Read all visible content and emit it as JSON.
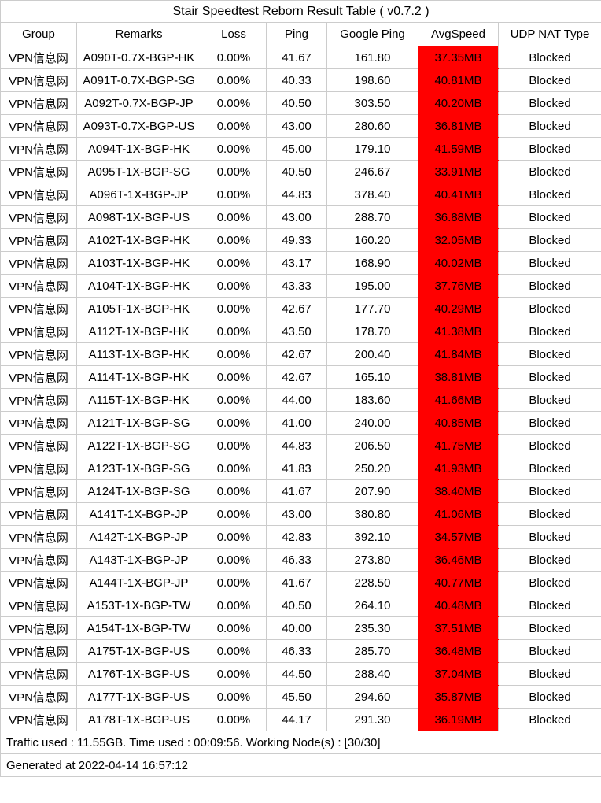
{
  "title": "Stair Speedtest Reborn Result Table ( v0.7.2 )",
  "columns": [
    "Group",
    "Remarks",
    "Loss",
    "Ping",
    "Google Ping",
    "AvgSpeed",
    "UDP NAT Type"
  ],
  "rows": [
    {
      "group": "VPN信息网",
      "remarks": "A090T-0.7X-BGP-HK",
      "loss": "0.00%",
      "ping": "41.67",
      "google_ping": "161.80",
      "avg_speed": "37.35MB",
      "udp_nat_type": "Blocked"
    },
    {
      "group": "VPN信息网",
      "remarks": "A091T-0.7X-BGP-SG",
      "loss": "0.00%",
      "ping": "40.33",
      "google_ping": "198.60",
      "avg_speed": "40.81MB",
      "udp_nat_type": "Blocked"
    },
    {
      "group": "VPN信息网",
      "remarks": "A092T-0.7X-BGP-JP",
      "loss": "0.00%",
      "ping": "40.50",
      "google_ping": "303.50",
      "avg_speed": "40.20MB",
      "udp_nat_type": "Blocked"
    },
    {
      "group": "VPN信息网",
      "remarks": "A093T-0.7X-BGP-US",
      "loss": "0.00%",
      "ping": "43.00",
      "google_ping": "280.60",
      "avg_speed": "36.81MB",
      "udp_nat_type": "Blocked"
    },
    {
      "group": "VPN信息网",
      "remarks": "A094T-1X-BGP-HK",
      "loss": "0.00%",
      "ping": "45.00",
      "google_ping": "179.10",
      "avg_speed": "41.59MB",
      "udp_nat_type": "Blocked"
    },
    {
      "group": "VPN信息网",
      "remarks": "A095T-1X-BGP-SG",
      "loss": "0.00%",
      "ping": "40.50",
      "google_ping": "246.67",
      "avg_speed": "33.91MB",
      "udp_nat_type": "Blocked"
    },
    {
      "group": "VPN信息网",
      "remarks": "A096T-1X-BGP-JP",
      "loss": "0.00%",
      "ping": "44.83",
      "google_ping": "378.40",
      "avg_speed": "40.41MB",
      "udp_nat_type": "Blocked"
    },
    {
      "group": "VPN信息网",
      "remarks": "A098T-1X-BGP-US",
      "loss": "0.00%",
      "ping": "43.00",
      "google_ping": "288.70",
      "avg_speed": "36.88MB",
      "udp_nat_type": "Blocked"
    },
    {
      "group": "VPN信息网",
      "remarks": "A102T-1X-BGP-HK",
      "loss": "0.00%",
      "ping": "49.33",
      "google_ping": "160.20",
      "avg_speed": "32.05MB",
      "udp_nat_type": "Blocked"
    },
    {
      "group": "VPN信息网",
      "remarks": "A103T-1X-BGP-HK",
      "loss": "0.00%",
      "ping": "43.17",
      "google_ping": "168.90",
      "avg_speed": "40.02MB",
      "udp_nat_type": "Blocked"
    },
    {
      "group": "VPN信息网",
      "remarks": "A104T-1X-BGP-HK",
      "loss": "0.00%",
      "ping": "43.33",
      "google_ping": "195.00",
      "avg_speed": "37.76MB",
      "udp_nat_type": "Blocked"
    },
    {
      "group": "VPN信息网",
      "remarks": "A105T-1X-BGP-HK",
      "loss": "0.00%",
      "ping": "42.67",
      "google_ping": "177.70",
      "avg_speed": "40.29MB",
      "udp_nat_type": "Blocked"
    },
    {
      "group": "VPN信息网",
      "remarks": "A112T-1X-BGP-HK",
      "loss": "0.00%",
      "ping": "43.50",
      "google_ping": "178.70",
      "avg_speed": "41.38MB",
      "udp_nat_type": "Blocked"
    },
    {
      "group": "VPN信息网",
      "remarks": "A113T-1X-BGP-HK",
      "loss": "0.00%",
      "ping": "42.67",
      "google_ping": "200.40",
      "avg_speed": "41.84MB",
      "udp_nat_type": "Blocked"
    },
    {
      "group": "VPN信息网",
      "remarks": "A114T-1X-BGP-HK",
      "loss": "0.00%",
      "ping": "42.67",
      "google_ping": "165.10",
      "avg_speed": "38.81MB",
      "udp_nat_type": "Blocked"
    },
    {
      "group": "VPN信息网",
      "remarks": "A115T-1X-BGP-HK",
      "loss": "0.00%",
      "ping": "44.00",
      "google_ping": "183.60",
      "avg_speed": "41.66MB",
      "udp_nat_type": "Blocked"
    },
    {
      "group": "VPN信息网",
      "remarks": "A121T-1X-BGP-SG",
      "loss": "0.00%",
      "ping": "41.00",
      "google_ping": "240.00",
      "avg_speed": "40.85MB",
      "udp_nat_type": "Blocked"
    },
    {
      "group": "VPN信息网",
      "remarks": "A122T-1X-BGP-SG",
      "loss": "0.00%",
      "ping": "44.83",
      "google_ping": "206.50",
      "avg_speed": "41.75MB",
      "udp_nat_type": "Blocked"
    },
    {
      "group": "VPN信息网",
      "remarks": "A123T-1X-BGP-SG",
      "loss": "0.00%",
      "ping": "41.83",
      "google_ping": "250.20",
      "avg_speed": "41.93MB",
      "udp_nat_type": "Blocked"
    },
    {
      "group": "VPN信息网",
      "remarks": "A124T-1X-BGP-SG",
      "loss": "0.00%",
      "ping": "41.67",
      "google_ping": "207.90",
      "avg_speed": "38.40MB",
      "udp_nat_type": "Blocked"
    },
    {
      "group": "VPN信息网",
      "remarks": "A141T-1X-BGP-JP",
      "loss": "0.00%",
      "ping": "43.00",
      "google_ping": "380.80",
      "avg_speed": "41.06MB",
      "udp_nat_type": "Blocked"
    },
    {
      "group": "VPN信息网",
      "remarks": "A142T-1X-BGP-JP",
      "loss": "0.00%",
      "ping": "42.83",
      "google_ping": "392.10",
      "avg_speed": "34.57MB",
      "udp_nat_type": "Blocked"
    },
    {
      "group": "VPN信息网",
      "remarks": "A143T-1X-BGP-JP",
      "loss": "0.00%",
      "ping": "46.33",
      "google_ping": "273.80",
      "avg_speed": "36.46MB",
      "udp_nat_type": "Blocked"
    },
    {
      "group": "VPN信息网",
      "remarks": "A144T-1X-BGP-JP",
      "loss": "0.00%",
      "ping": "41.67",
      "google_ping": "228.50",
      "avg_speed": "40.77MB",
      "udp_nat_type": "Blocked"
    },
    {
      "group": "VPN信息网",
      "remarks": "A153T-1X-BGP-TW",
      "loss": "0.00%",
      "ping": "40.50",
      "google_ping": "264.10",
      "avg_speed": "40.48MB",
      "udp_nat_type": "Blocked"
    },
    {
      "group": "VPN信息网",
      "remarks": "A154T-1X-BGP-TW",
      "loss": "0.00%",
      "ping": "40.00",
      "google_ping": "235.30",
      "avg_speed": "37.51MB",
      "udp_nat_type": "Blocked"
    },
    {
      "group": "VPN信息网",
      "remarks": "A175T-1X-BGP-US",
      "loss": "0.00%",
      "ping": "46.33",
      "google_ping": "285.70",
      "avg_speed": "36.48MB",
      "udp_nat_type": "Blocked"
    },
    {
      "group": "VPN信息网",
      "remarks": "A176T-1X-BGP-US",
      "loss": "0.00%",
      "ping": "44.50",
      "google_ping": "288.40",
      "avg_speed": "37.04MB",
      "udp_nat_type": "Blocked"
    },
    {
      "group": "VPN信息网",
      "remarks": "A177T-1X-BGP-US",
      "loss": "0.00%",
      "ping": "45.50",
      "google_ping": "294.60",
      "avg_speed": "35.87MB",
      "udp_nat_type": "Blocked"
    },
    {
      "group": "VPN信息网",
      "remarks": "A178T-1X-BGP-US",
      "loss": "0.00%",
      "ping": "44.17",
      "google_ping": "291.30",
      "avg_speed": "36.19MB",
      "udp_nat_type": "Blocked"
    }
  ],
  "footer": {
    "summary": "Traffic used : 11.55GB. Time used : 00:09:56. Working Node(s) : [30/30]",
    "generated": "Generated at 2022-04-14 16:57:12"
  },
  "colors": {
    "speed_highlight": "#ff0000",
    "grid_border": "#cccccc",
    "text": "#000000",
    "background": "#ffffff"
  }
}
